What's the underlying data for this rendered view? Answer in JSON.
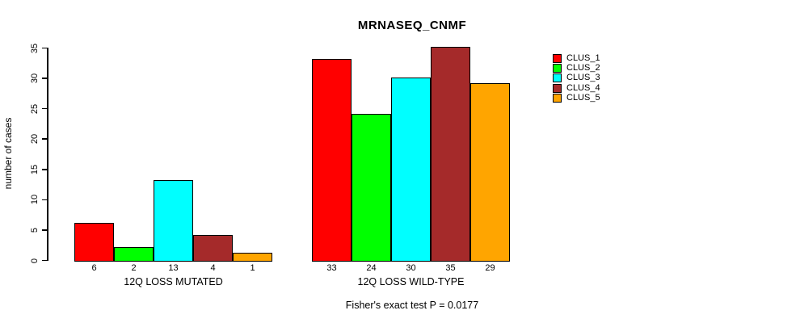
{
  "chart_data": {
    "type": "bar",
    "title": "MRNASEQ_CNMF",
    "ylabel": "number of cases",
    "xlabel": "",
    "ylim": [
      0,
      35
    ],
    "yticks": [
      0,
      5,
      10,
      15,
      20,
      25,
      30,
      35
    ],
    "grid": false,
    "categories": [
      "12Q LOSS MUTATED",
      "12Q LOSS WILD-TYPE"
    ],
    "series": [
      {
        "name": "CLUS_1",
        "color": "#FF0000",
        "values": [
          6,
          33
        ]
      },
      {
        "name": "CLUS_2",
        "color": "#00FF00",
        "values": [
          2,
          24
        ]
      },
      {
        "name": "CLUS_3",
        "color": "#00FFFF",
        "values": [
          13,
          30
        ]
      },
      {
        "name": "CLUS_4",
        "color": "#A52A2A",
        "values": [
          4,
          35
        ]
      },
      {
        "name": "CLUS_5",
        "color": "#FFA500",
        "values": [
          1,
          29
        ]
      }
    ],
    "bar_value_labels_shown": true,
    "legend": {
      "position": "right",
      "entries": [
        "CLUS_1",
        "CLUS_2",
        "CLUS_3",
        "CLUS_4",
        "CLUS_5"
      ]
    },
    "annotation": "Fisher's exact test P = 0.0177"
  }
}
